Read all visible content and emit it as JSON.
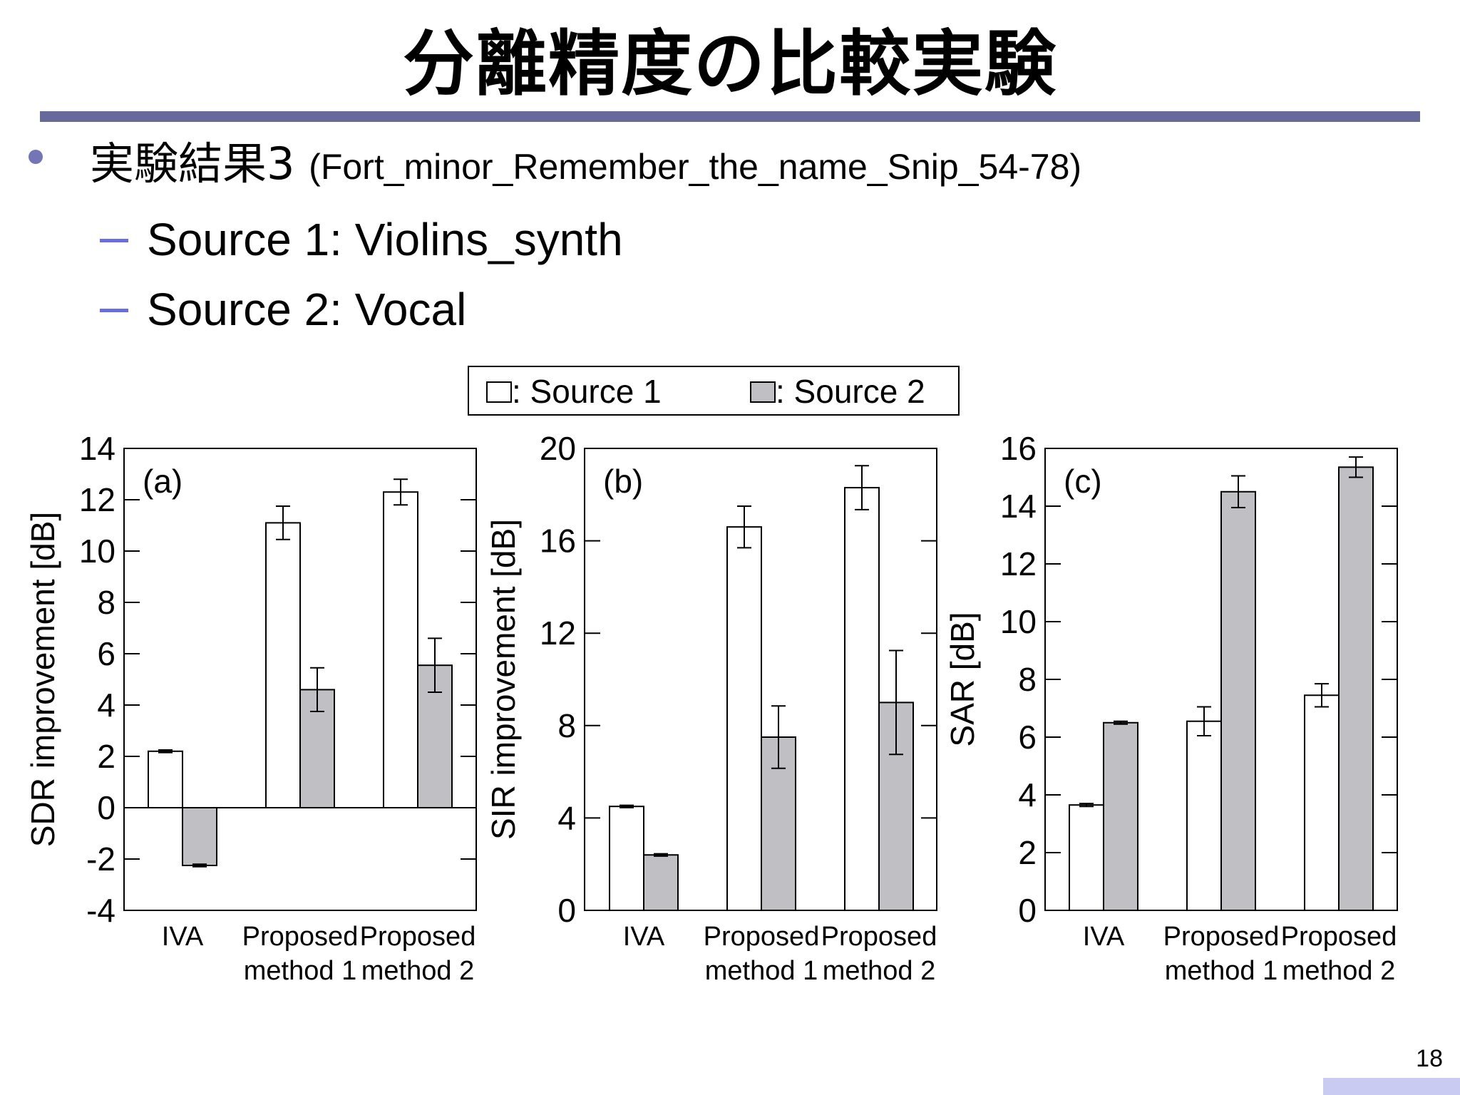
{
  "slide": {
    "title": "分離精度の比較実験",
    "bullet": {
      "main": "実験結果3",
      "sub": "(Fort_minor_Remember_the_name_Snip_54-78)"
    },
    "sub_items": [
      "Source 1: Violins_synth",
      "Source 2: Vocal"
    ],
    "page_number": "18"
  },
  "legend": {
    "source1": ": Source 1",
    "source2": ": Source 2"
  },
  "colors": {
    "source1_fill": "#ffffff",
    "source2_fill": "#c0bfc3",
    "title_rule": "#67699a",
    "bullet": "#7276b4"
  },
  "chart_data": [
    {
      "type": "bar",
      "panel": "(a)",
      "ylabel": "SDR improvement [dB]",
      "categories": [
        [
          "IVA"
        ],
        [
          "Proposed",
          "method 1"
        ],
        [
          "Proposed",
          "method 2"
        ]
      ],
      "ylim": [
        -4,
        14
      ],
      "yticks": [
        -4,
        -2,
        0,
        2,
        4,
        6,
        8,
        10,
        12,
        14
      ],
      "series": [
        {
          "name": "Source 1",
          "values": [
            2.2,
            11.1,
            12.3
          ],
          "errors": [
            0.05,
            0.65,
            0.5
          ]
        },
        {
          "name": "Source 2",
          "values": [
            -2.25,
            4.6,
            5.55
          ],
          "errors": [
            0.05,
            0.85,
            1.05
          ]
        }
      ]
    },
    {
      "type": "bar",
      "panel": "(b)",
      "ylabel": "SIR improvement [dB]",
      "categories": [
        [
          "IVA"
        ],
        [
          "Proposed",
          "method 1"
        ],
        [
          "Proposed",
          "method 2"
        ]
      ],
      "ylim": [
        0,
        20
      ],
      "yticks": [
        0,
        4,
        8,
        12,
        16,
        20
      ],
      "series": [
        {
          "name": "Source 1",
          "values": [
            4.5,
            16.6,
            18.3
          ],
          "errors": [
            0.05,
            0.9,
            0.95
          ]
        },
        {
          "name": "Source 2",
          "values": [
            2.4,
            7.5,
            9.0
          ],
          "errors": [
            0.05,
            1.35,
            2.25
          ]
        }
      ]
    },
    {
      "type": "bar",
      "panel": "(c)",
      "ylabel": "SAR [dB]",
      "categories": [
        [
          "IVA"
        ],
        [
          "Proposed",
          "method 1"
        ],
        [
          "Proposed",
          "method 2"
        ]
      ],
      "ylim": [
        0,
        16
      ],
      "yticks": [
        0,
        2,
        4,
        6,
        8,
        10,
        12,
        14,
        16
      ],
      "series": [
        {
          "name": "Source 1",
          "values": [
            3.65,
            6.55,
            7.45
          ],
          "errors": [
            0.05,
            0.5,
            0.4
          ]
        },
        {
          "name": "Source 2",
          "values": [
            6.5,
            14.5,
            15.35
          ],
          "errors": [
            0.05,
            0.55,
            0.35
          ]
        }
      ]
    }
  ]
}
